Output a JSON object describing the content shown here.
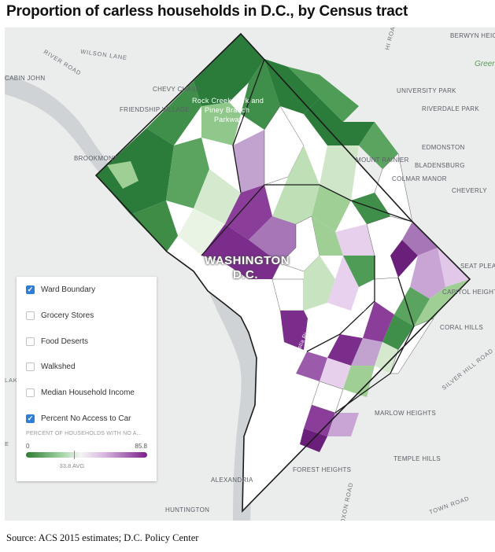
{
  "title": "Proportion of carless households in D.C., by Census tract",
  "source": "Source: ACS 2015 estimates; D.C. Policy Center",
  "map": {
    "city_label_1": "WASHINGTON",
    "city_label_2": "D.C.",
    "places": {
      "berwyn_heights": "BERWYN HEIGHTS",
      "cabin_john": "CABIN JOHN",
      "chevy_chase": "CHEVY CHASE",
      "university_park": "UNIVERSITY PARK",
      "friendship_village": "FRIENDSHIP VILLAGE",
      "riverdale_park": "RIVERDALE PARK",
      "edmonston": "EDMONSTON",
      "brookmont": "BROOKMONT",
      "mount_rainier": "MOUNT RAINIER",
      "bladensburg": "BLADENSBURG",
      "colmar_manor": "COLMAR MANOR",
      "cheverly": "CHEVERLY",
      "seat_pleasant": "SEAT PLEAS",
      "capitol_heights": "CAPITOL HEIGHTS",
      "coral_hills": "CORAL HILLS",
      "marlow_heights": "MARLOW HEIGHTS",
      "temple_hills": "TEMPLE HILLS",
      "forest_heights": "FOREST HEIGHTS",
      "alexandria": "ALEXANDRIA",
      "huntington": "HUNTINGTON",
      "green": "Green",
      "rock_creek": "Rock Creek Park and",
      "rock_creek_2": "Piney Branch",
      "rock_creek_3": "Parkway",
      "anacostia_river": "Anacostia River",
      "anacostia_river_2": "Anacostia River"
    },
    "roads": {
      "river_road": "RIVER ROAD",
      "wilson_lane": "WILSON LANE",
      "road_top": "HI ROAD",
      "silver_hill_road": "SILVER HILL ROAD",
      "oxon_road": "OXON ROAD",
      "town_road": "TOWN ROAD",
      "lak": "LAK",
      "e": "E"
    }
  },
  "layers": [
    {
      "label": "Ward Boundary",
      "checked": true
    },
    {
      "label": "Grocery Stores",
      "checked": false
    },
    {
      "label": "Food Deserts",
      "checked": false
    },
    {
      "label": "Walkshed",
      "checked": false
    },
    {
      "label": "Median Household Income",
      "checked": false
    },
    {
      "label": "Percent No Access to Car",
      "checked": true
    }
  ],
  "legend": {
    "title": "PERCENT OF HOUSEHOLDS WITH NO A...",
    "min": "0",
    "max": "85.8",
    "avg": "33.8 AVG",
    "avg_value": 33.8,
    "range": [
      0,
      85.8
    ],
    "colors": {
      "low": "#2e7d32",
      "mid": "#f4f4f4",
      "high": "#7b1f8a"
    }
  }
}
